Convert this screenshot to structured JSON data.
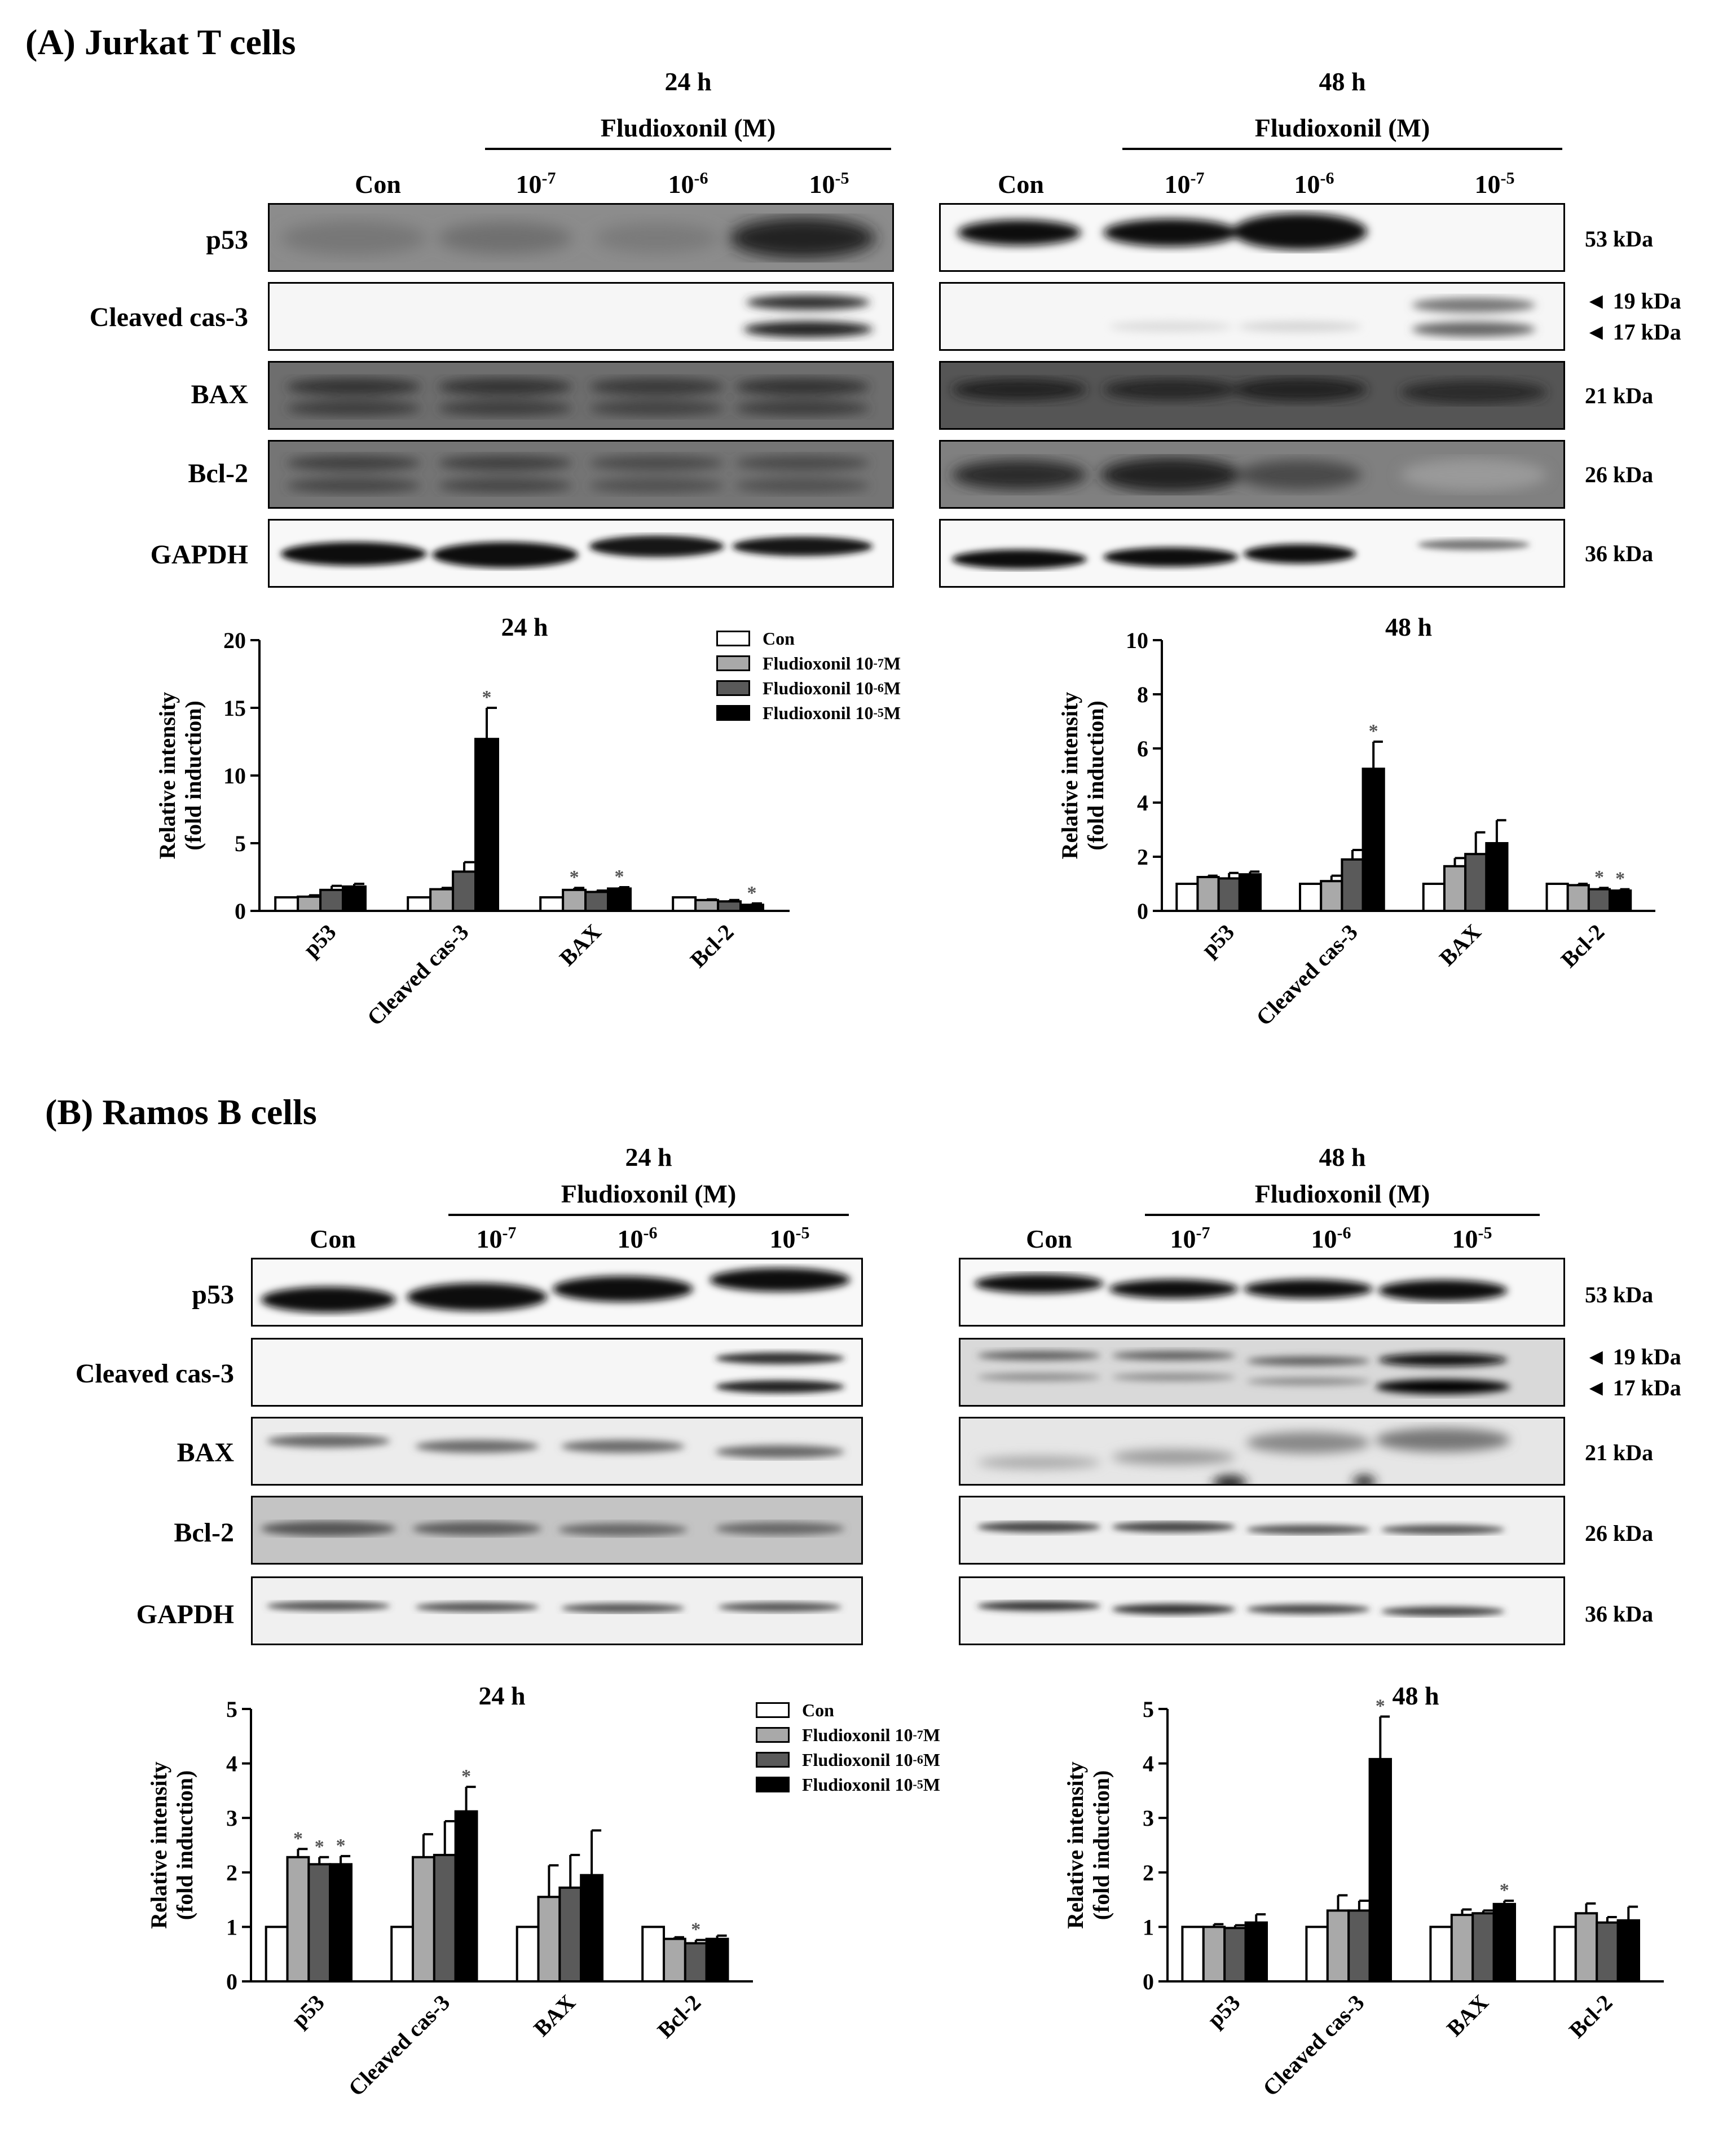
{
  "panels": [
    {
      "id": "A",
      "title": "(A) Jurkat T cells",
      "blots": [
        {
          "time": "24 h",
          "treatment": "Fludioxonil (M)"
        },
        {
          "time": "48 h",
          "treatment": "Fludioxonil (M)"
        }
      ],
      "lanes": [
        {
          "base": "Con",
          "exp": ""
        },
        {
          "base": "10",
          "exp": "-7"
        },
        {
          "base": "10",
          "exp": "-6"
        },
        {
          "base": "10",
          "exp": "-5"
        }
      ],
      "rows": [
        "p53",
        "Cleaved cas-3",
        "BAX",
        "Bcl-2",
        "GAPDH"
      ],
      "kda": [
        "53 kDa",
        "◄ 19 kDa",
        "◄ 17 kDa",
        "21 kDa",
        "26 kDa",
        "36 kDa"
      ],
      "legend": [
        {
          "base": "Con",
          "exp": "",
          "unit": "",
          "color": "#ffffff"
        },
        {
          "base": "Fludioxonil 10",
          "exp": "-7",
          "unit": " M",
          "color": "#a9a9a9"
        },
        {
          "base": "Fludioxonil 10",
          "exp": "-6",
          "unit": " M",
          "color": "#5a5a5a"
        },
        {
          "base": "Fludioxonil 10",
          "exp": "-5",
          "unit": " M",
          "color": "#000000"
        }
      ]
    },
    {
      "id": "B",
      "title": "(B) Ramos B cells",
      "blots": [
        {
          "time": "24 h",
          "treatment": "Fludioxonil (M)"
        },
        {
          "time": "48 h",
          "treatment": "Fludioxonil (M)"
        }
      ],
      "lanes": [
        {
          "base": "Con",
          "exp": ""
        },
        {
          "base": "10",
          "exp": "-7"
        },
        {
          "base": "10",
          "exp": "-6"
        },
        {
          "base": "10",
          "exp": "-5"
        }
      ],
      "rows": [
        "p53",
        "Cleaved cas-3",
        "BAX",
        "Bcl-2",
        "GAPDH"
      ],
      "kda": [
        "53 kDa",
        "◄ 19 kDa",
        "◄ 17 kDa",
        "21 kDa",
        "26 kDa",
        "36 kDa"
      ],
      "legend": [
        {
          "base": "Con",
          "exp": "",
          "unit": "",
          "color": "#ffffff"
        },
        {
          "base": "Fludioxonil 10",
          "exp": "-7",
          "unit": " M",
          "color": "#a9a9a9"
        },
        {
          "base": "Fludioxonil 10",
          "exp": "-6",
          "unit": " M",
          "color": "#5a5a5a"
        },
        {
          "base": "Fludioxonil 10",
          "exp": "-5",
          "unit": " M",
          "color": "#000000"
        }
      ]
    }
  ],
  "chart_data": [
    {
      "type": "bar",
      "title": "24 h",
      "ylabel": "Relative intensity (fold induction)",
      "ylim": [
        0,
        20
      ],
      "yticks": [
        0,
        5,
        10,
        15,
        20
      ],
      "categories": [
        "p53",
        "Cleaved cas-3",
        "BAX",
        "Bcl-2"
      ],
      "series": [
        {
          "name": "Con",
          "color": "#ffffff",
          "values": [
            1.0,
            1.0,
            1.0,
            1.0
          ],
          "errors": [
            0,
            0,
            0,
            0
          ],
          "sig": [
            false,
            false,
            false,
            false
          ]
        },
        {
          "name": "Fludioxonil 10-7 M",
          "color": "#a9a9a9",
          "values": [
            1.05,
            1.6,
            1.55,
            0.8
          ],
          "errors": [
            0.1,
            0.1,
            0.15,
            0.05
          ],
          "sig": [
            false,
            false,
            true,
            false
          ]
        },
        {
          "name": "Fludioxonil 10-6 M",
          "color": "#5a5a5a",
          "values": [
            1.55,
            2.9,
            1.4,
            0.7
          ],
          "errors": [
            0.3,
            0.7,
            0.1,
            0.1
          ],
          "sig": [
            false,
            false,
            false,
            false
          ]
        },
        {
          "name": "Fludioxonil 10-5 M",
          "color": "#000000",
          "values": [
            1.8,
            12.7,
            1.65,
            0.45
          ],
          "errors": [
            0.2,
            2.3,
            0.1,
            0.1
          ],
          "sig": [
            false,
            true,
            true,
            true
          ]
        }
      ]
    },
    {
      "type": "bar",
      "title": "48 h",
      "ylabel": "Relative intensity (fold induction)",
      "ylim": [
        0,
        10
      ],
      "yticks": [
        0,
        2,
        4,
        6,
        8,
        10
      ],
      "categories": [
        "p53",
        "Cleaved cas-3",
        "BAX",
        "Bcl-2"
      ],
      "series": [
        {
          "name": "Con",
          "color": "#ffffff",
          "values": [
            1.0,
            1.0,
            1.0,
            1.0
          ],
          "errors": [
            0,
            0,
            0,
            0
          ],
          "sig": [
            false,
            false,
            false,
            false
          ]
        },
        {
          "name": "Fludioxonil 10-7 M",
          "color": "#a9a9a9",
          "values": [
            1.25,
            1.1,
            1.65,
            0.95
          ],
          "errors": [
            0.05,
            0.2,
            0.3,
            0.05
          ],
          "sig": [
            false,
            false,
            false,
            false
          ]
        },
        {
          "name": "Fludioxonil 10-6 M",
          "color": "#5a5a5a",
          "values": [
            1.2,
            1.9,
            2.1,
            0.8
          ],
          "errors": [
            0.2,
            0.35,
            0.8,
            0.05
          ],
          "sig": [
            false,
            false,
            false,
            true
          ]
        },
        {
          "name": "Fludioxonil 10-5 M",
          "color": "#000000",
          "values": [
            1.35,
            5.25,
            2.5,
            0.75
          ],
          "errors": [
            0.1,
            1.0,
            0.85,
            0.05
          ],
          "sig": [
            false,
            true,
            false,
            true
          ]
        }
      ]
    },
    {
      "type": "bar",
      "title": "24 h",
      "ylabel": "Relative intensity (fold induction)",
      "ylim": [
        0,
        5
      ],
      "yticks": [
        0,
        1,
        2,
        3,
        4,
        5
      ],
      "categories": [
        "p53",
        "Cleaved cas-3",
        "BAX",
        "Bcl-2"
      ],
      "series": [
        {
          "name": "Con",
          "color": "#ffffff",
          "values": [
            1.0,
            1.0,
            1.0,
            1.0
          ],
          "errors": [
            0,
            0,
            0,
            0
          ],
          "sig": [
            false,
            false,
            false,
            false
          ]
        },
        {
          "name": "Fludioxonil 10-7 M",
          "color": "#a9a9a9",
          "values": [
            2.28,
            2.28,
            1.55,
            0.78
          ],
          "errors": [
            0.15,
            0.42,
            0.58,
            0.03
          ],
          "sig": [
            true,
            false,
            false,
            false
          ]
        },
        {
          "name": "Fludioxonil 10-6 M",
          "color": "#5a5a5a",
          "values": [
            2.15,
            2.32,
            1.72,
            0.7
          ],
          "errors": [
            0.13,
            0.62,
            0.6,
            0.06
          ],
          "sig": [
            true,
            false,
            false,
            true
          ]
        },
        {
          "name": "Fludioxonil 10-5 M",
          "color": "#000000",
          "values": [
            2.15,
            3.12,
            1.95,
            0.78
          ],
          "errors": [
            0.15,
            0.45,
            0.82,
            0.06
          ],
          "sig": [
            true,
            true,
            false,
            false
          ]
        }
      ]
    },
    {
      "type": "bar",
      "title": "48 h",
      "ylabel": "Relative intensity (fold induction)",
      "ylim": [
        0,
        5
      ],
      "yticks": [
        0,
        1,
        2,
        3,
        4,
        5
      ],
      "categories": [
        "p53",
        "Cleaved cas-3",
        "BAX",
        "Bcl-2"
      ],
      "series": [
        {
          "name": "Con",
          "color": "#ffffff",
          "values": [
            1.0,
            1.0,
            1.0,
            1.0
          ],
          "errors": [
            0,
            0,
            0,
            0
          ],
          "sig": [
            false,
            false,
            false,
            false
          ]
        },
        {
          "name": "Fludioxonil 10-7 M",
          "color": "#a9a9a9",
          "values": [
            1.0,
            1.3,
            1.22,
            1.25
          ],
          "errors": [
            0.05,
            0.28,
            0.1,
            0.18
          ],
          "sig": [
            false,
            false,
            false,
            false
          ]
        },
        {
          "name": "Fludioxonil 10-6 M",
          "color": "#5a5a5a",
          "values": [
            0.98,
            1.3,
            1.25,
            1.08
          ],
          "errors": [
            0.05,
            0.18,
            0.05,
            0.1
          ],
          "sig": [
            false,
            false,
            false,
            false
          ]
        },
        {
          "name": "Fludioxonil 10-5 M",
          "color": "#000000",
          "values": [
            1.08,
            4.08,
            1.42,
            1.12
          ],
          "errors": [
            0.15,
            0.78,
            0.06,
            0.25
          ],
          "sig": [
            false,
            true,
            true,
            false
          ]
        }
      ]
    }
  ]
}
